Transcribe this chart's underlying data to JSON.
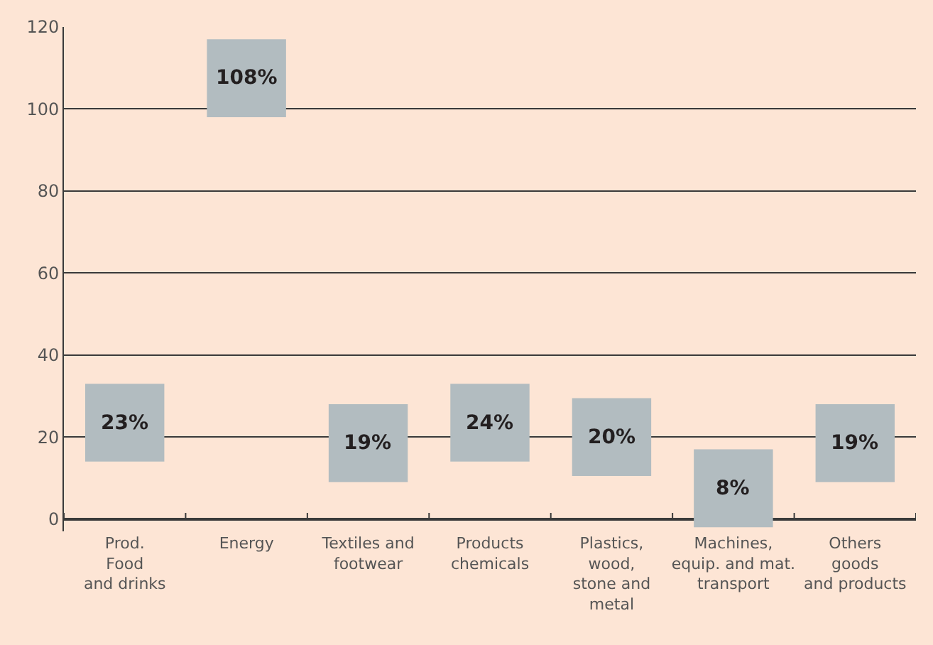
{
  "chart_data": {
    "type": "bar",
    "categories": [
      "Prod.\nFood\nand drinks",
      "Energy",
      "Textiles and\nfootwear",
      "Products\nchemicals",
      "Plastics,\nwood,\nstone and\nmetal",
      "Machines,\nequip. and mat.\ntransport",
      "Others\ngoods\nand products"
    ],
    "values": [
      19,
      19,
      19,
      19,
      19,
      19,
      19
    ],
    "base": [
      14,
      98,
      9,
      14,
      10.5,
      -2,
      9
    ],
    "annotations": [
      "23%",
      "108%",
      "19%",
      "24%",
      "20%",
      "8%",
      "19%"
    ],
    "color": "#b2bcc0",
    "ylim": [
      -3,
      120
    ],
    "yticks": [
      0,
      20,
      40,
      60,
      80,
      100,
      120
    ],
    "grid": "y"
  }
}
